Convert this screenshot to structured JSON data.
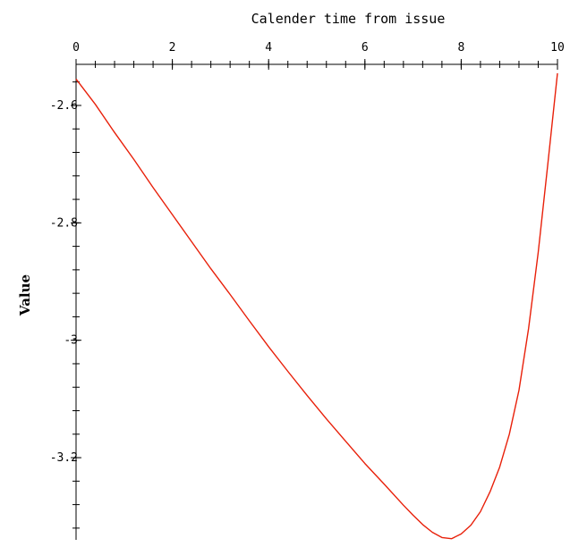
{
  "chart_data": {
    "type": "line",
    "title": "Calender time from issue",
    "xlabel": "",
    "ylabel": "Value",
    "xlim": [
      0,
      10
    ],
    "ylim": [
      -3.34,
      -2.53
    ],
    "x_ticks": [
      0,
      2,
      4,
      6,
      8,
      10
    ],
    "x_tick_labels": [
      "0",
      "2",
      "4",
      "6",
      "8",
      "10"
    ],
    "y_ticks": [
      -2.6,
      -2.8,
      -3,
      -3.2
    ],
    "y_tick_labels": [
      "-2.6",
      "-2.8",
      "-3",
      "-3.2"
    ],
    "x_axis_position": "top",
    "grid": false,
    "legend": "none",
    "line_color": "#e8200a",
    "series": [
      {
        "x": [
          0,
          0.4,
          0.8,
          1.2,
          1.6,
          2,
          2.4,
          2.8,
          3.2,
          3.6,
          4,
          4.4,
          4.8,
          5.2,
          5.6,
          6,
          6.4,
          6.8,
          7.0,
          7.2,
          7.4,
          7.6,
          7.8,
          8.0,
          8.2,
          8.4,
          8.6,
          8.8,
          9.0,
          9.2,
          9.4,
          9.6,
          9.8,
          10
        ],
        "y": [
          -2.555,
          -2.598,
          -2.646,
          -2.692,
          -2.74,
          -2.786,
          -2.832,
          -2.878,
          -2.922,
          -2.967,
          -3.011,
          -3.053,
          -3.094,
          -3.134,
          -3.172,
          -3.21,
          -3.245,
          -3.281,
          -3.298,
          -3.314,
          -3.327,
          -3.336,
          -3.338,
          -3.33,
          -3.315,
          -3.292,
          -3.258,
          -3.216,
          -3.16,
          -3.085,
          -2.98,
          -2.85,
          -2.7,
          -2.545
        ]
      }
    ]
  }
}
